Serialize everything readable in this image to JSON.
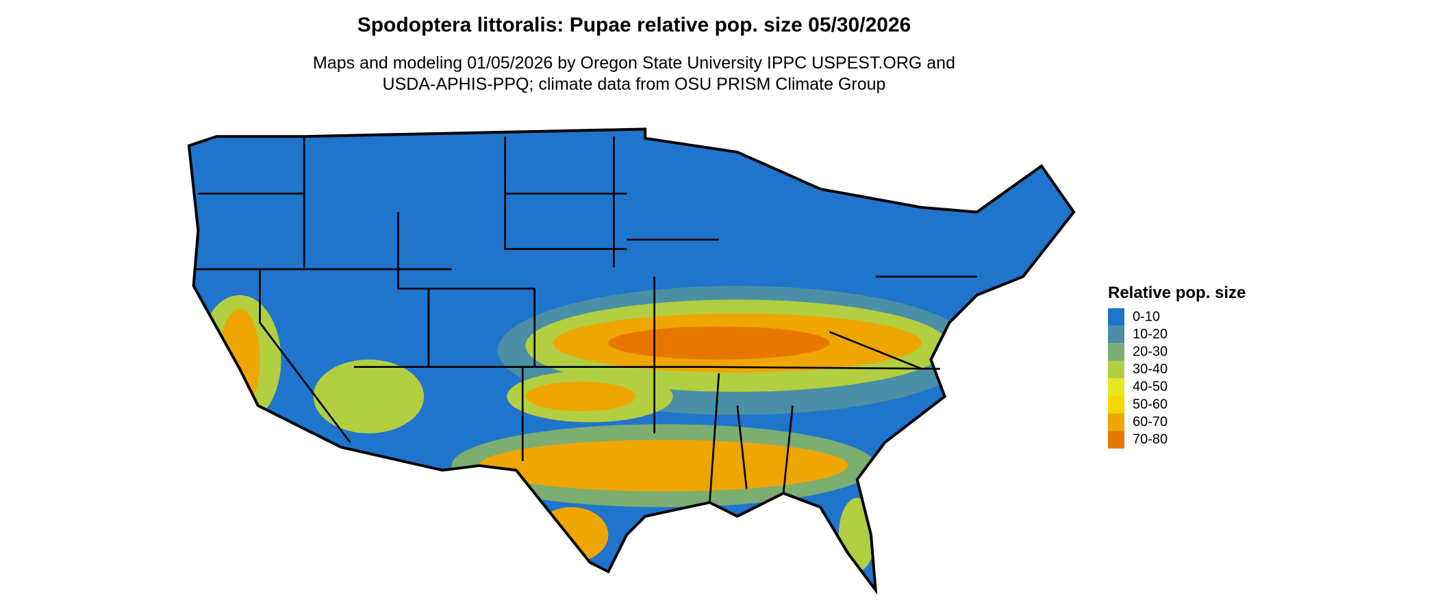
{
  "title": "Spodoptera littoralis: Pupae relative pop. size 05/30/2026",
  "subtitle": [
    "Maps and modeling 01/05/2026 by Oregon State University IPPC USPEST.ORG and",
    "USDA-APHIS-PPQ; climate data from OSU PRISM Climate Group"
  ],
  "legend": {
    "title": "Relative pop. size",
    "items": [
      {
        "label": "0-10",
        "color": "#1f74cc"
      },
      {
        "label": "10-20",
        "color": "#4a8fa6"
      },
      {
        "label": "20-30",
        "color": "#7cae72"
      },
      {
        "label": "30-40",
        "color": "#b2cf42"
      },
      {
        "label": "40-50",
        "color": "#e6e622"
      },
      {
        "label": "50-60",
        "color": "#f6d800"
      },
      {
        "label": "60-70",
        "color": "#f0a600"
      },
      {
        "label": "70-80",
        "color": "#e67800"
      }
    ]
  }
}
